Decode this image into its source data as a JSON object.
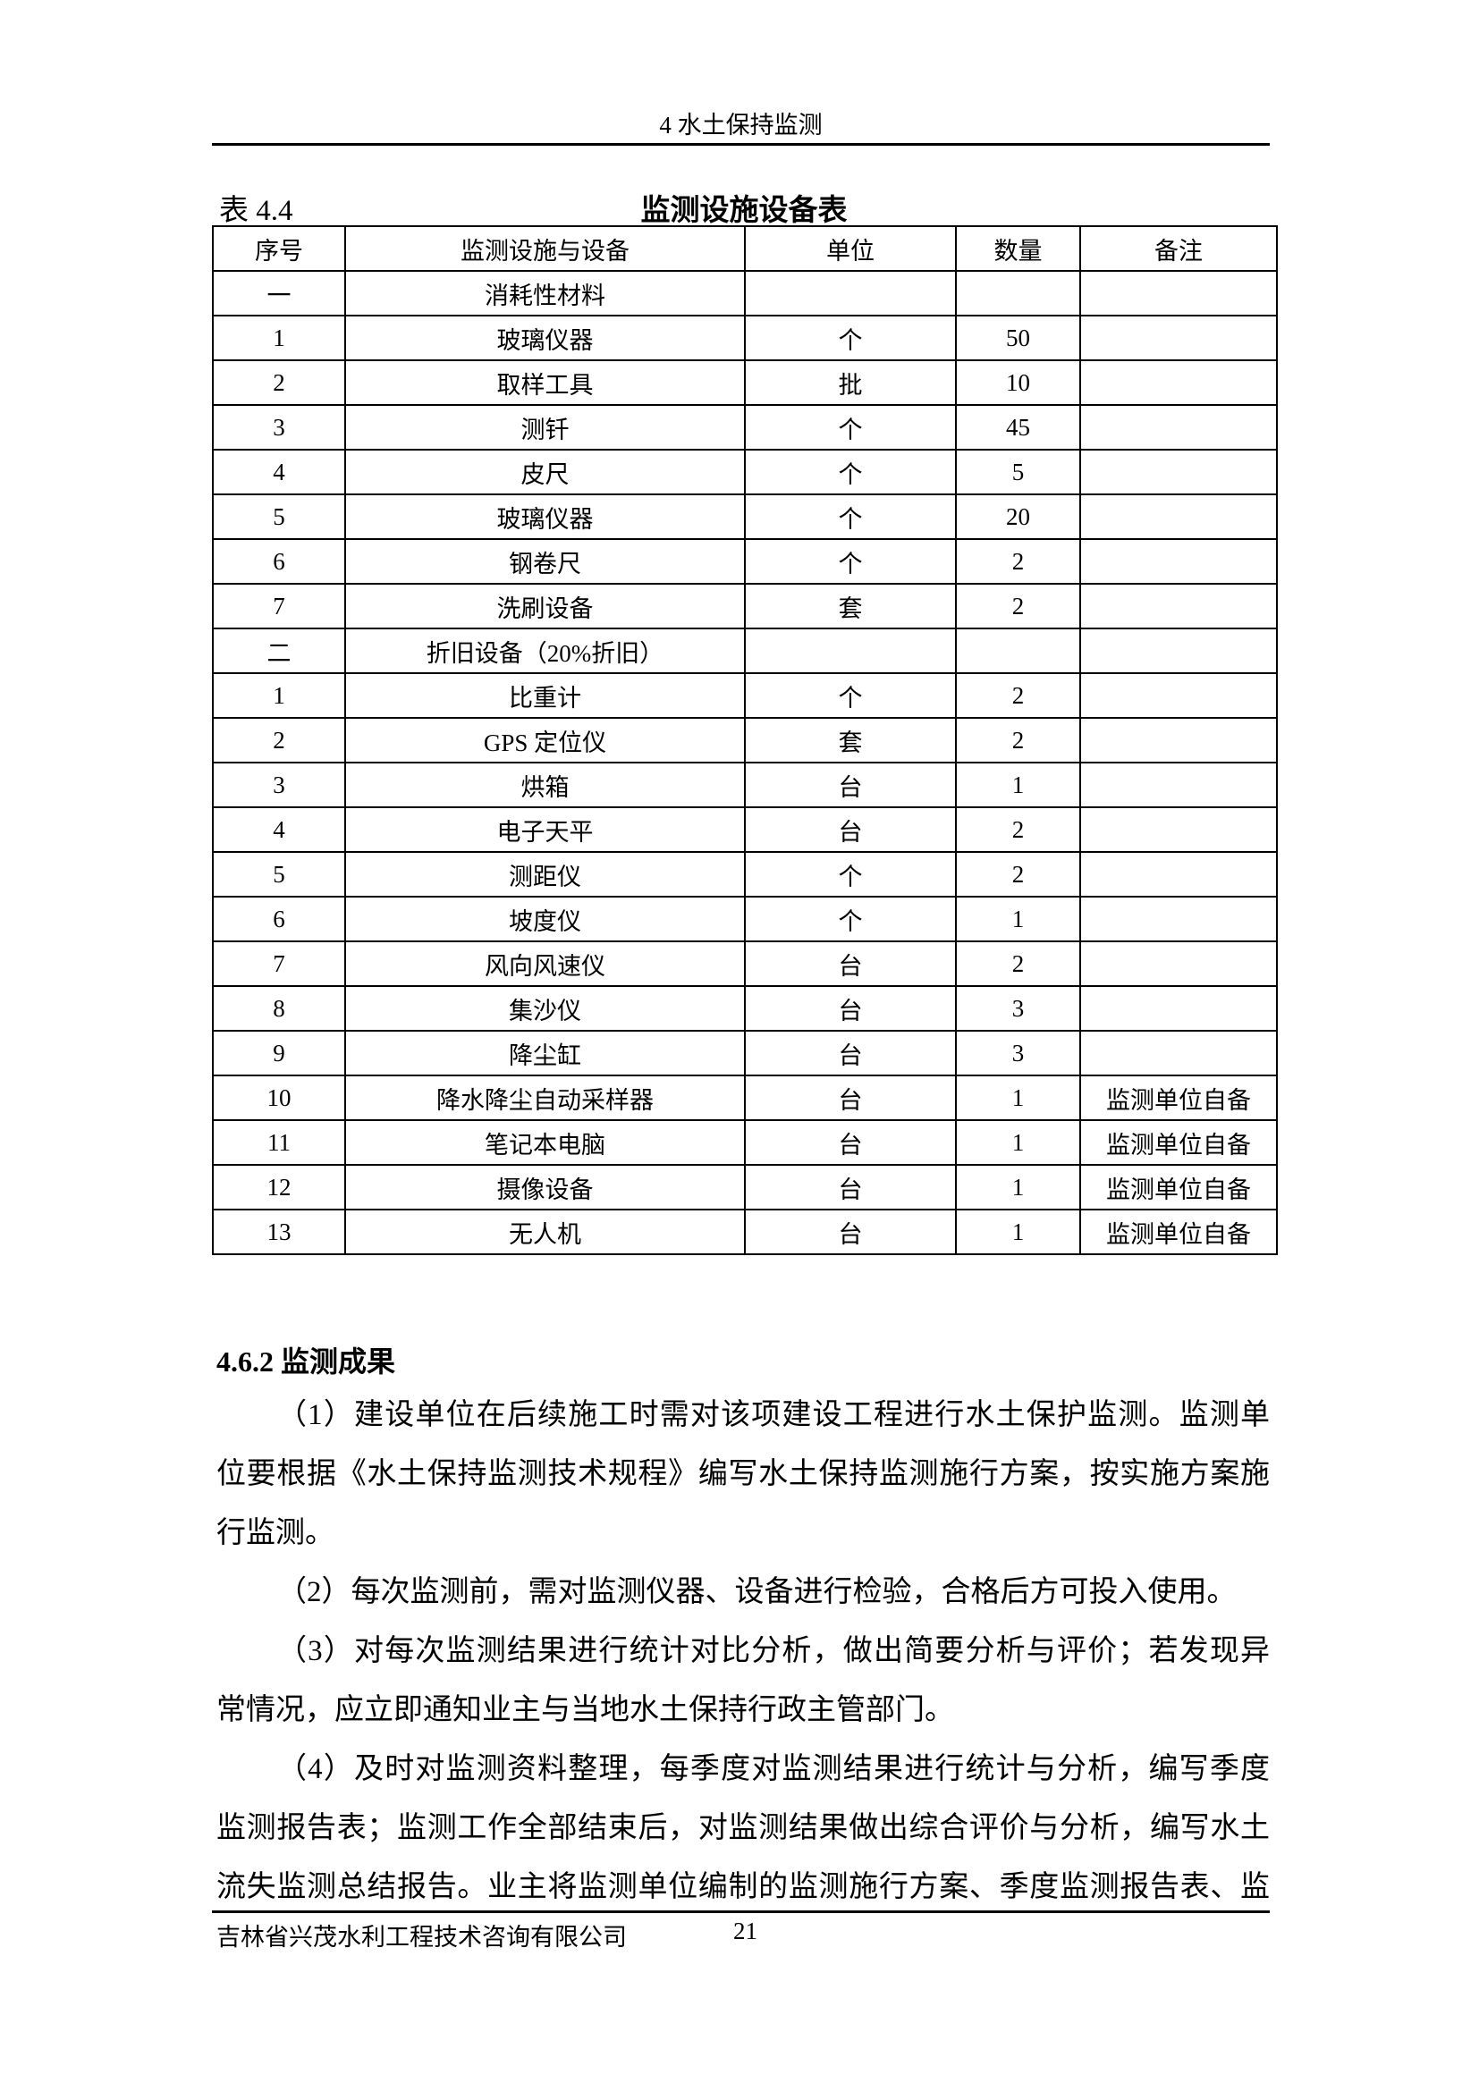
{
  "header": {
    "title": "4 水土保持监测"
  },
  "table": {
    "number": "表 4.4",
    "title": "监测设施设备表",
    "columns": [
      "序号",
      "监测设施与设备",
      "单位",
      "数量",
      "备注"
    ],
    "rows": [
      [
        "一",
        "消耗性材料",
        "",
        "",
        ""
      ],
      [
        "1",
        "玻璃仪器",
        "个",
        "50",
        ""
      ],
      [
        "2",
        "取样工具",
        "批",
        "10",
        ""
      ],
      [
        "3",
        "测钎",
        "个",
        "45",
        ""
      ],
      [
        "4",
        "皮尺",
        "个",
        "5",
        ""
      ],
      [
        "5",
        "玻璃仪器",
        "个",
        "20",
        ""
      ],
      [
        "6",
        "钢卷尺",
        "个",
        "2",
        ""
      ],
      [
        "7",
        "洗刷设备",
        "套",
        "2",
        ""
      ],
      [
        "二",
        "折旧设备（20%折旧）",
        "",
        "",
        ""
      ],
      [
        "1",
        "比重计",
        "个",
        "2",
        ""
      ],
      [
        "2",
        "GPS 定位仪",
        "套",
        "2",
        ""
      ],
      [
        "3",
        "烘箱",
        "台",
        "1",
        ""
      ],
      [
        "4",
        "电子天平",
        "台",
        "2",
        ""
      ],
      [
        "5",
        "测距仪",
        "个",
        "2",
        ""
      ],
      [
        "6",
        "坡度仪",
        "个",
        "1",
        ""
      ],
      [
        "7",
        "风向风速仪",
        "台",
        "2",
        ""
      ],
      [
        "8",
        "集沙仪",
        "台",
        "3",
        ""
      ],
      [
        "9",
        "降尘缸",
        "台",
        "3",
        ""
      ],
      [
        "10",
        "降水降尘自动采样器",
        "台",
        "1",
        "监测单位自备"
      ],
      [
        "11",
        "笔记本电脑",
        "台",
        "1",
        "监测单位自备"
      ],
      [
        "12",
        "摄像设备",
        "台",
        "1",
        "监测单位自备"
      ],
      [
        "13",
        "无人机",
        "台",
        "1",
        "监测单位自备"
      ]
    ]
  },
  "section": {
    "heading": "4.6.2 监测成果"
  },
  "paragraphs": [
    [
      "（1）建设单位在后续施工时需对该项建设工程进行水土保护监测。监测单",
      "位要根据《水土保持监测技术规程》编写水土保持监测施行方案，按实施方案施",
      "行监测。"
    ],
    [
      "（2）每次监测前，需对监测仪器、设备进行检验，合格后方可投入使用。"
    ],
    [
      "（3）对每次监测结果进行统计对比分析，做出简要分析与评价；若发现异",
      "常情况，应立即通知业主与当地水土保持行政主管部门。"
    ],
    [
      "（4）及时对监测资料整理，每季度对监测结果进行统计与分析，编写季度",
      "监测报告表；监测工作全部结束后，对监测结果做出综合评价与分析，编写水土",
      "流失监测总结报告。业主将监测单位编制的监测施行方案、季度监测报告表、监"
    ]
  ],
  "footer": {
    "company": "吉林省兴茂水利工程技术咨询有限公司",
    "page": "21"
  }
}
